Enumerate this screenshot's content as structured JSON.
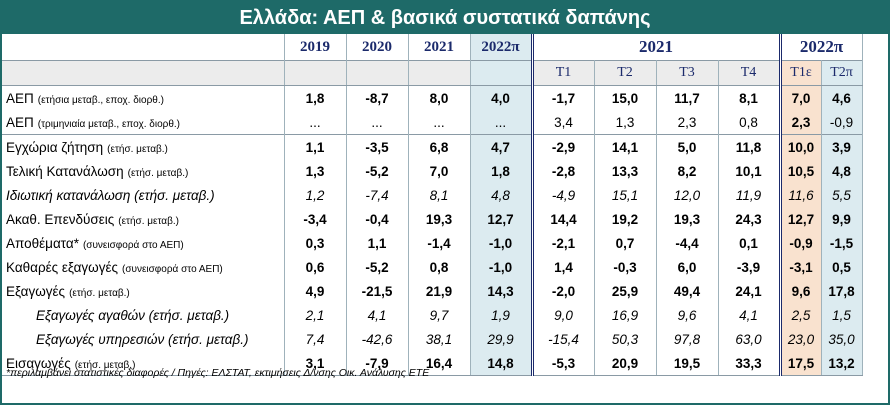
{
  "title": "Ελλάδα: ΑΕΠ & βασικά συστατικά δαπάνης",
  "years": [
    "2019",
    "2020",
    "2021",
    "2022π"
  ],
  "groups": [
    "2021",
    "2022π"
  ],
  "quarters": [
    "Τ1",
    "Τ2",
    "Τ3",
    "Τ4",
    "Τ1ε",
    "Τ2π"
  ],
  "rows": [
    {
      "label": "ΑΕΠ",
      "sub": "(ετήσια μεταβ., εποχ. διορθ.)",
      "y": [
        "1,8",
        "-8,7",
        "8,0",
        "4,0"
      ],
      "q": [
        "-1,7",
        "15,0",
        "11,7",
        "8,1",
        "7,0",
        "4,6"
      ]
    },
    {
      "label": "ΑΕΠ",
      "sub": "(τριμηνιαία μεταβ., εποχ. διορθ.)",
      "y": [
        "...",
        "...",
        "...",
        "..."
      ],
      "q": [
        "3,4",
        "1,3",
        "2,3",
        "0,8",
        "2,3",
        "-0,9"
      ]
    },
    {
      "label": "Εγχώρια ζήτηση",
      "sub": "(ετήσ. μεταβ.)",
      "y": [
        "1,1",
        "-3,5",
        "6,8",
        "4,7"
      ],
      "q": [
        "-2,9",
        "14,1",
        "5,0",
        "11,8",
        "10,0",
        "3,9"
      ]
    },
    {
      "label": "Τελική Κατανάλωση",
      "sub": "(ετήσ. μεταβ.)",
      "y": [
        "1,3",
        "-5,2",
        "7,0",
        "1,8"
      ],
      "q": [
        "-2,8",
        "13,3",
        "8,2",
        "10,1",
        "10,5",
        "4,8"
      ]
    },
    {
      "label": "Ιδιωτική κατανάλωση (ετήσ. μεταβ.)",
      "sub": "",
      "y": [
        "1,2",
        "-7,4",
        "8,1",
        "4,8"
      ],
      "q": [
        "-4,9",
        "15,1",
        "12,0",
        "11,9",
        "11,6",
        "5,5"
      ]
    },
    {
      "label": "Ακαθ. Επενδύσεις",
      "sub": "(ετήσ. μεταβ.)",
      "y": [
        "-3,4",
        "-0,4",
        "19,3",
        "12,7"
      ],
      "q": [
        "14,4",
        "19,2",
        "19,3",
        "24,3",
        "12,7",
        "9,9"
      ]
    },
    {
      "label": "Αποθέματα*",
      "sub": "(συνεισφορά στο ΑΕΠ)",
      "y": [
        "0,3",
        "1,1",
        "-1,4",
        "-1,0"
      ],
      "q": [
        "-2,1",
        "0,7",
        "-4,4",
        "0,1",
        "-0,9",
        "-1,5"
      ]
    },
    {
      "label": "Καθαρές εξαγωγές",
      "sub": "(συνεισφορά στο ΑΕΠ)",
      "y": [
        "0,6",
        "-5,2",
        "0,8",
        "-1,0"
      ],
      "q": [
        "1,4",
        "-0,3",
        "6,0",
        "-3,9",
        "-3,1",
        "0,5"
      ]
    },
    {
      "label": "Εξαγωγές",
      "sub": "(ετήσ. μεταβ.)",
      "y": [
        "4,9",
        "-21,5",
        "21,9",
        "14,3"
      ],
      "q": [
        "-2,0",
        "25,9",
        "49,4",
        "24,1",
        "9,6",
        "17,8"
      ]
    },
    {
      "label": "Εξαγωγές αγαθών (ετήσ. μεταβ.)",
      "sub": "",
      "y": [
        "2,1",
        "4,1",
        "9,7",
        "1,9"
      ],
      "q": [
        "9,0",
        "16,9",
        "9,6",
        "4,1",
        "2,5",
        "1,5"
      ]
    },
    {
      "label": "Εξαγωγές υπηρεσιών (ετήσ. μεταβ.)",
      "sub": "",
      "y": [
        "7,4",
        "-42,6",
        "38,1",
        "29,9"
      ],
      "q": [
        "-15,4",
        "50,3",
        "97,8",
        "63,0",
        "23,0",
        "35,0"
      ]
    },
    {
      "label": "Εισαγωγές",
      "sub": "(ετήσ. μεταβ.)",
      "y": [
        "3,1",
        "-7,9",
        "16,4",
        "14,8"
      ],
      "q": [
        "-5,3",
        "20,9",
        "19,5",
        "33,3",
        "17,5",
        "13,2"
      ]
    }
  ],
  "footnote": "*περιλαμβάνει στατιστικές διαφορές  / Πηγές: ΕΛΣΤΑΤ, εκτιμήσεις Δ/νσης Οικ. Ανάλυσης ΕΤΕ",
  "colors": {
    "header": "#1e6a68",
    "forecast": "#dcebf0",
    "estimate": "#f9e2cf",
    "year_text": "#1b2a6b"
  }
}
